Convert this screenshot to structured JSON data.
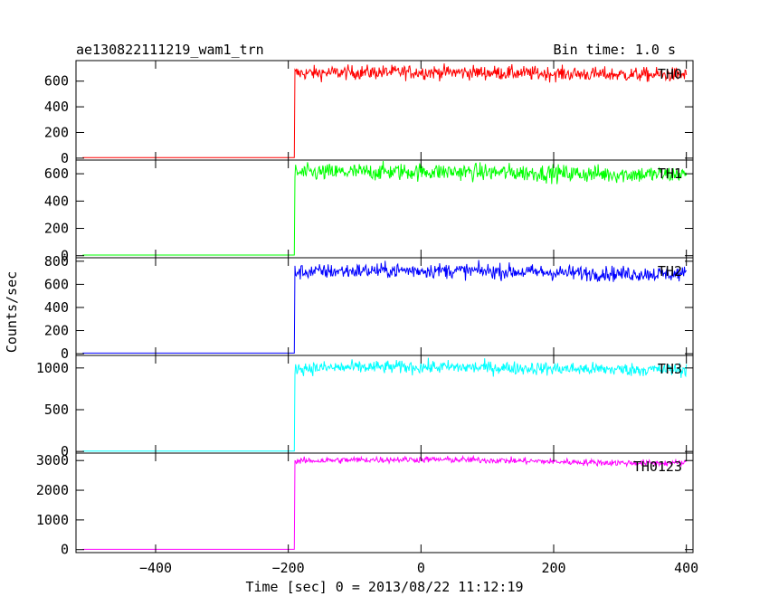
{
  "chart_data": {
    "type": "line",
    "title": "ae130822111219_wam1_trn",
    "bin_label": "Bin time: 1.0 s",
    "xlabel": "Time [sec] 0 = 2013/08/22 11:12:19",
    "ylabel": "Counts/sec",
    "xlim": [
      -520,
      410
    ],
    "x_ticks": [
      -400,
      -200,
      0,
      200,
      400
    ],
    "x_tick_labels": [
      "−400",
      "−200",
      "0",
      "200",
      "400"
    ],
    "step_x": -190,
    "panels": [
      {
        "name": "TH0",
        "color": "#ff0000",
        "ylim": [
          -15,
          760
        ],
        "y_ticks": [
          0,
          200,
          400,
          600
        ],
        "y_tick_labels": [
          "0",
          "200",
          "400",
          "600"
        ],
        "pre_level": 5,
        "post_level": 660,
        "noise": 28,
        "trend": 10
      },
      {
        "name": "TH1",
        "color": "#00ff00",
        "ylim": [
          -15,
          700
        ],
        "y_ticks": [
          0,
          200,
          400,
          600
        ],
        "y_tick_labels": [
          "0",
          "200",
          "400",
          "600"
        ],
        "pre_level": 5,
        "post_level": 605,
        "noise": 32,
        "trend": 10
      },
      {
        "name": "TH2",
        "color": "#0000ff",
        "ylim": [
          -15,
          830
        ],
        "y_ticks": [
          0,
          200,
          400,
          600,
          800
        ],
        "y_tick_labels": [
          "0",
          "200",
          "400",
          "600",
          "800"
        ],
        "pre_level": 5,
        "post_level": 705,
        "noise": 33,
        "trend": 15
      },
      {
        "name": "TH3",
        "color": "#00ffff",
        "ylim": [
          -20,
          1150
        ],
        "y_ticks": [
          0,
          500,
          1000
        ],
        "y_tick_labels": [
          "0",
          "500",
          "1000"
        ],
        "pre_level": 5,
        "post_level": 995,
        "noise": 40,
        "trend": 15
      },
      {
        "name": "TH0123",
        "color": "#ff00ff",
        "ylim": [
          -100,
          3250
        ],
        "y_ticks": [
          0,
          1000,
          2000,
          3000
        ],
        "y_tick_labels": [
          "0",
          "1000",
          "2000",
          "3000"
        ],
        "pre_level": 10,
        "post_level": 2975,
        "noise": 55,
        "trend": 60
      }
    ],
    "grid": false,
    "legend": "panel labels top-right of each panel"
  }
}
